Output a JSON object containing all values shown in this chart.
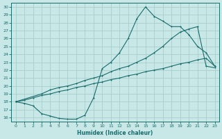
{
  "xlabel": "Humidex (Indice chaleur)",
  "bg_color": "#c8e8e8",
  "grid_color": "#a8cccc",
  "line_color": "#1a6b6b",
  "xlim": [
    -0.5,
    23.5
  ],
  "ylim": [
    15.5,
    30.5
  ],
  "xticks": [
    0,
    1,
    2,
    3,
    4,
    5,
    6,
    7,
    8,
    9,
    10,
    11,
    12,
    13,
    14,
    15,
    16,
    17,
    18,
    19,
    20,
    21,
    22,
    23
  ],
  "yticks": [
    16,
    17,
    18,
    19,
    20,
    21,
    22,
    23,
    24,
    25,
    26,
    27,
    28,
    29,
    30
  ],
  "line1_x": [
    0,
    1,
    2,
    3,
    4,
    5,
    6,
    7,
    8,
    9,
    10,
    11,
    12,
    13,
    14,
    15,
    16,
    17,
    18,
    19,
    20,
    21,
    22,
    23
  ],
  "line1_y": [
    18.0,
    17.8,
    17.5,
    16.5,
    16.2,
    15.9,
    15.8,
    15.8,
    16.3,
    18.5,
    22.2,
    23.0,
    24.2,
    26.0,
    28.5,
    30.0,
    28.8,
    28.2,
    27.5,
    27.5,
    26.5,
    25.0,
    24.2,
    22.5
  ],
  "line2_x": [
    0,
    3,
    4,
    5,
    6,
    7,
    8,
    9,
    10,
    11,
    12,
    13,
    14,
    15,
    16,
    17,
    18,
    19,
    20,
    21,
    22,
    23
  ],
  "line2_y": [
    18.0,
    19.0,
    19.5,
    19.8,
    20.0,
    20.3,
    20.7,
    21.0,
    21.3,
    21.8,
    22.2,
    22.5,
    23.0,
    23.5,
    24.2,
    25.0,
    26.0,
    26.8,
    27.2,
    27.5,
    22.5,
    22.3
  ],
  "line3_x": [
    0,
    1,
    2,
    3,
    4,
    5,
    6,
    7,
    8,
    9,
    10,
    11,
    12,
    13,
    14,
    15,
    16,
    17,
    18,
    19,
    20,
    21,
    22,
    23
  ],
  "line3_y": [
    18.0,
    18.2,
    18.5,
    18.8,
    19.0,
    19.3,
    19.5,
    19.8,
    20.0,
    20.3,
    20.5,
    20.8,
    21.0,
    21.3,
    21.5,
    21.8,
    22.0,
    22.2,
    22.5,
    22.8,
    23.0,
    23.3,
    23.5,
    22.5
  ]
}
